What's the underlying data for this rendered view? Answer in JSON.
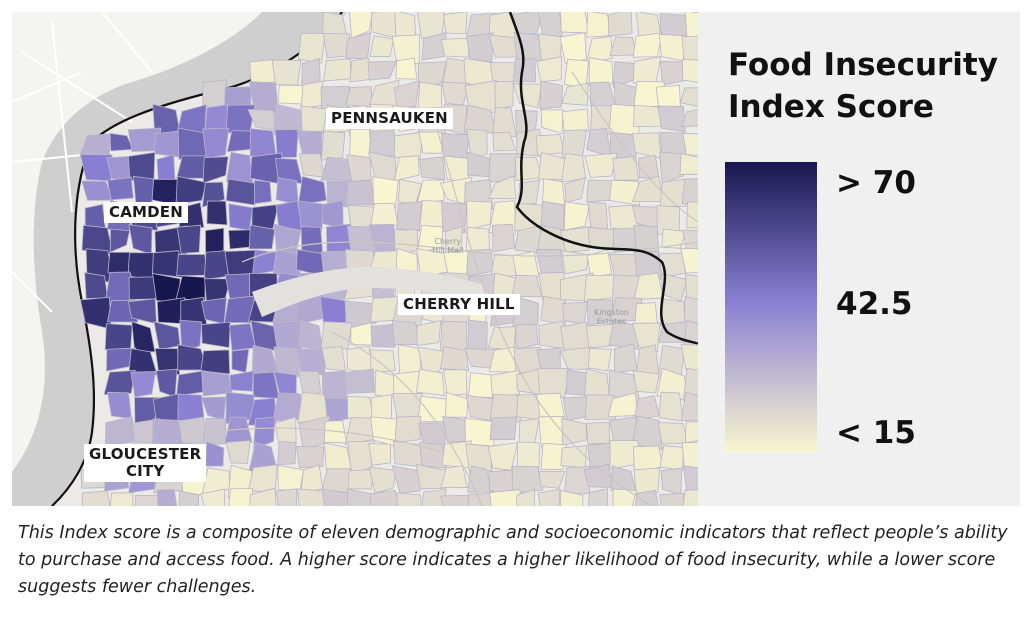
{
  "map": {
    "places": [
      {
        "id": "pennsauken",
        "text": "PENNSAUKEN"
      },
      {
        "id": "camden",
        "text": "CAMDEN"
      },
      {
        "id": "cherry-hill",
        "text": "CHERRY HILL"
      },
      {
        "id": "gloucester-city",
        "text": "GLOUCESTER\nCITY"
      }
    ],
    "poi": {
      "cherry_hill_mall": "Cherry\nHill Mall",
      "kingston_estates": "Kingston\nEstates"
    }
  },
  "legend": {
    "title": "Food Insecurity Index Score",
    "high_label": "> 70",
    "mid_label": "42.5",
    "low_label": "< 15",
    "colors": {
      "high": "#17174f",
      "mid": "#8a7fd2",
      "low": "#f8f6d0"
    }
  },
  "caption": "This Index score is a composite of eleven demographic and socioeconomic indicators that reflect people’s ability to purchase and access food. A higher score indicates a higher likelihood of food insecurity, while a lower score suggests fewer challenges."
}
